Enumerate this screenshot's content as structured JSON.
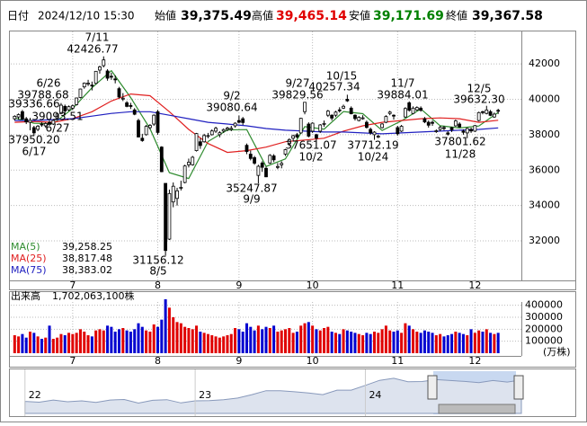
{
  "header": {
    "date_label": "日付",
    "date": "2024/12/10 15:30",
    "open_label": "始値",
    "open": "39,375.49",
    "high_label": "高値",
    "high": "39,465.14",
    "low_label": "安値",
    "low": "39,171.69",
    "close_label": "終値",
    "close": "39,367.58"
  },
  "chart_data": [
    {
      "type": "candlestick",
      "up_color": "#ffffff",
      "down_color": "#000000",
      "grid": true,
      "xlim": [
        -1,
        131
      ],
      "xticks": [
        {
          "value": 15,
          "label": "7"
        },
        {
          "value": 37,
          "label": "8"
        },
        {
          "value": 58,
          "label": "9"
        },
        {
          "value": 77,
          "label": "10"
        },
        {
          "value": 99,
          "label": "11"
        },
        {
          "value": 119,
          "label": "12"
        }
      ],
      "ylim": [
        29870,
        43730
      ],
      "yticks": [
        32000,
        34000,
        36000,
        38000,
        40000,
        42000
      ],
      "ohlc": [
        [
          38900,
          39100,
          38800,
          39038
        ],
        [
          39000,
          39200,
          38850,
          39134
        ],
        [
          39300,
          39400,
          38850,
          38876
        ],
        [
          38900,
          39000,
          38600,
          38720
        ],
        [
          38700,
          38950,
          38250,
          38814
        ],
        [
          38400,
          38500,
          37950.2,
          38102
        ],
        [
          38300,
          38550,
          38200,
          38482
        ],
        [
          38600,
          38700,
          38450,
          38570
        ],
        [
          38500,
          38700,
          38400,
          38633
        ],
        [
          38700,
          38800,
          38500,
          38596
        ],
        [
          38600,
          38850,
          38550,
          38804
        ],
        [
          38900,
          39200,
          38850,
          39173
        ],
        [
          39200,
          39788.68,
          39150,
          39667
        ],
        [
          39600,
          39700,
          39093.51,
          39341
        ],
        [
          39400,
          39650,
          39336.66,
          39583
        ],
        [
          39500,
          39700,
          39400,
          39631
        ],
        [
          39700,
          40100,
          39650,
          40074
        ],
        [
          40100,
          40600,
          40050,
          40580
        ],
        [
          40700,
          40950,
          40600,
          40913
        ],
        [
          40900,
          41100,
          40750,
          40912
        ],
        [
          40800,
          41000,
          40500,
          40780
        ],
        [
          40900,
          41600,
          40850,
          41580
        ],
        [
          41650,
          41900,
          41450,
          41831
        ],
        [
          41900,
          42426.77,
          41800,
          42224
        ],
        [
          41600,
          41700,
          41050,
          41190
        ],
        [
          41300,
          41500,
          41100,
          41275
        ],
        [
          41150,
          41350,
          40900,
          41097
        ],
        [
          40600,
          40700,
          40050,
          40126
        ],
        [
          40050,
          40350,
          39900,
          40063
        ],
        [
          39800,
          39900,
          39550,
          39599
        ],
        [
          39650,
          39800,
          39450,
          39594
        ],
        [
          39400,
          39500,
          39100,
          39154
        ],
        [
          38800,
          38900,
          37850,
          37869
        ],
        [
          37800,
          38050,
          37600,
          37667
        ],
        [
          38000,
          38550,
          37950,
          38468
        ],
        [
          38400,
          38600,
          38300,
          38525
        ],
        [
          38600,
          39150,
          38500,
          39101
        ],
        [
          39300,
          39400,
          38000,
          38126
        ],
        [
          37300,
          37350,
          35880,
          35909
        ],
        [
          35250,
          35250,
          31156.12,
          31458
        ],
        [
          32100,
          34900,
          32050,
          34675
        ],
        [
          34200,
          35300,
          33900,
          35089
        ],
        [
          34400,
          35000,
          34000,
          34831
        ],
        [
          35000,
          35400,
          34850,
          35025
        ],
        [
          35300,
          36300,
          35250,
          36232
        ],
        [
          36300,
          36650,
          36150,
          36442
        ],
        [
          36300,
          36800,
          36250,
          36726
        ],
        [
          37100,
          38100,
          37050,
          38062
        ],
        [
          37600,
          37800,
          37200,
          37388
        ],
        [
          37600,
          38050,
          37550,
          37951
        ],
        [
          37900,
          38100,
          37800,
          37951
        ],
        [
          38000,
          38300,
          37950,
          38211
        ],
        [
          38200,
          38450,
          38100,
          38364
        ],
        [
          38000,
          38200,
          37850,
          38110
        ],
        [
          38200,
          38350,
          38100,
          38288
        ],
        [
          38300,
          38450,
          38200,
          38371
        ],
        [
          38300,
          38500,
          38200,
          38362
        ],
        [
          38500,
          38700,
          38400,
          38647
        ],
        [
          38800,
          39080.64,
          38650,
          38700
        ],
        [
          38900,
          39000,
          38550,
          38686
        ],
        [
          37400,
          37500,
          36900,
          37047
        ],
        [
          36900,
          37100,
          36550,
          36657
        ],
        [
          36700,
          36800,
          36300,
          36391
        ],
        [
          35700,
          36300,
          35247.87,
          36215
        ],
        [
          36400,
          36500,
          35900,
          36159
        ],
        [
          36100,
          36200,
          35600,
          35619
        ],
        [
          36400,
          36900,
          36350,
          36833
        ],
        [
          36800,
          36900,
          36450,
          36581
        ],
        [
          36200,
          36400,
          36050,
          36203
        ],
        [
          36300,
          36500,
          36100,
          36380
        ],
        [
          36900,
          37200,
          36800,
          37155
        ],
        [
          37500,
          37800,
          37350,
          37723
        ],
        [
          37800,
          38000,
          37650,
          37940
        ],
        [
          38000,
          38100,
          37800,
          37870
        ],
        [
          38100,
          38950,
          38050,
          38925
        ],
        [
          39300,
          39829.56,
          39150,
          39829
        ],
        [
          38600,
          38700,
          37850,
          37919
        ],
        [
          38200,
          38700,
          38100,
          38651
        ],
        [
          38000,
          38050,
          37651.07,
          37808
        ],
        [
          38200,
          38600,
          38100,
          38552
        ],
        [
          38600,
          38800,
          38450,
          38635
        ],
        [
          39100,
          39400,
          39000,
          39332
        ],
        [
          39100,
          39150,
          38800,
          38937
        ],
        [
          39100,
          39350,
          39000,
          39277
        ],
        [
          39400,
          39550,
          39250,
          39380
        ],
        [
          39500,
          39700,
          39450,
          39605
        ],
        [
          40000,
          40257.34,
          39850,
          39910
        ],
        [
          39500,
          39600,
          39150,
          39180
        ],
        [
          39100,
          39150,
          38800,
          38911
        ],
        [
          38800,
          39050,
          38750,
          38981
        ],
        [
          38900,
          39100,
          38850,
          38954
        ],
        [
          38700,
          38800,
          38350,
          38411
        ],
        [
          38300,
          38400,
          38000,
          38104
        ],
        [
          38000,
          38200,
          37712.19,
          38143
        ],
        [
          37900,
          38000,
          37800,
          37913
        ],
        [
          38400,
          38650,
          38350,
          38605
        ],
        [
          38700,
          39100,
          38650,
          39027
        ],
        [
          39200,
          39350,
          39100,
          39277
        ],
        [
          39100,
          39150,
          38850,
          39081
        ],
        [
          38400,
          38500,
          37950,
          38053
        ],
        [
          38200,
          38550,
          38150,
          38474
        ],
        [
          39000,
          39550,
          38950,
          39480
        ],
        [
          39800,
          39884.01,
          39300,
          39381
        ],
        [
          39200,
          39600,
          39150,
          39500
        ],
        [
          39400,
          39600,
          39350,
          39533
        ],
        [
          39500,
          39600,
          39300,
          39376
        ],
        [
          38900,
          39000,
          38650,
          38721
        ],
        [
          38700,
          38800,
          38400,
          38535
        ],
        [
          38700,
          38800,
          38500,
          38642
        ],
        [
          38200,
          38300,
          38100,
          38220
        ],
        [
          38300,
          38500,
          38200,
          38414
        ],
        [
          38400,
          38500,
          38250,
          38352
        ],
        [
          38100,
          38200,
          37950,
          38026
        ],
        [
          38400,
          38450,
          38150,
          38283
        ],
        [
          38500,
          38850,
          38450,
          38780
        ],
        [
          38600,
          38700,
          38400,
          38442
        ],
        [
          38200,
          38300,
          38000,
          38134
        ],
        [
          38100,
          38400,
          37801.62,
          38349
        ],
        [
          38300,
          38400,
          38100,
          38208
        ],
        [
          38200,
          38550,
          38150,
          38513
        ],
        [
          38800,
          39300,
          38750,
          39248
        ],
        [
          39300,
          39350,
          39150,
          39276
        ],
        [
          39200,
          39632.3,
          39150,
          39395
        ],
        [
          39300,
          39400,
          39050,
          39091
        ],
        [
          39000,
          39250,
          38950,
          39160
        ],
        [
          39375.49,
          39465.14,
          39171.69,
          39367.58
        ]
      ],
      "series": [
        {
          "name": "MA(5)",
          "color": "#2e8b2e",
          "value_label": "39,258.25",
          "x": [
            0,
            5,
            10,
            15,
            20,
            25,
            30,
            35,
            40,
            45,
            50,
            55,
            60,
            65,
            70,
            75,
            80,
            85,
            90,
            95,
            100,
            105,
            110,
            115,
            120,
            125
          ],
          "values": [
            38950,
            38650,
            38617,
            39479,
            40652,
            41620,
            40096,
            38337,
            35854,
            35524,
            37616,
            38269,
            38288,
            36208,
            36630,
            38457,
            38313,
            39306,
            39187,
            38235,
            38782,
            39454,
            38506,
            38377,
            38490,
            39258.25
          ]
        },
        {
          "name": "MA(25)",
          "color": "#e02020",
          "value_label": "38,817.48",
          "x": [
            0,
            5,
            10,
            15,
            20,
            25,
            30,
            35,
            40,
            45,
            50,
            55,
            60,
            65,
            70,
            75,
            80,
            85,
            90,
            95,
            100,
            105,
            110,
            115,
            120,
            125
          ],
          "values": [
            38700,
            38750,
            38700,
            38900,
            39300,
            39900,
            40300,
            40200,
            39300,
            38300,
            37500,
            37000,
            37100,
            37300,
            37600,
            37700,
            37800,
            38200,
            38500,
            38700,
            38800,
            38900,
            38950,
            38900,
            38700,
            38817.48
          ]
        },
        {
          "name": "MA(75)",
          "color": "#2020c0",
          "value_label": "38,383.02",
          "x": [
            0,
            5,
            10,
            15,
            20,
            25,
            30,
            35,
            40,
            45,
            50,
            55,
            60,
            65,
            70,
            75,
            80,
            85,
            90,
            95,
            100,
            105,
            110,
            115,
            120,
            125
          ],
          "values": [
            38800,
            38800,
            38850,
            38900,
            39050,
            39200,
            39300,
            39300,
            39100,
            38900,
            38700,
            38600,
            38500,
            38350,
            38250,
            38200,
            38150,
            38150,
            38100,
            38050,
            38100,
            38150,
            38200,
            38250,
            38300,
            38383.02
          ]
        }
      ],
      "annotations": [
        "7/11",
        "42426.77",
        "6/26",
        "39788.68",
        "39336.66",
        "39093.51",
        "6/27",
        "37950.20",
        "6/17",
        "9/2",
        "39080.64",
        "35247.87",
        "9/9",
        "9/27",
        "39829.56",
        "10/15",
        "40257.34",
        "37651.07",
        "10/2",
        "11/7",
        "39884.01",
        "37712.19",
        "10/24",
        "12/5",
        "39632.30",
        "37801.62",
        "11/28",
        "31156.12",
        "8/5"
      ]
    },
    {
      "type": "bar",
      "title": "出来高",
      "latest_label": "1,702,063,100株",
      "unit": "(万株)",
      "up_color": "#e00000",
      "down_color": "#0000d0",
      "ylim": [
        0,
        450000
      ],
      "yticks": [
        100000,
        200000,
        300000,
        400000
      ],
      "values": [
        150000,
        140000,
        160000,
        130000,
        180000,
        170000,
        140000,
        120000,
        130000,
        230000,
        120000,
        130000,
        160000,
        150000,
        170000,
        160000,
        170000,
        200000,
        180000,
        150000,
        140000,
        190000,
        200000,
        190000,
        230000,
        220000,
        180000,
        200000,
        210000,
        190000,
        180000,
        200000,
        250000,
        220000,
        190000,
        180000,
        240000,
        220000,
        280000,
        450000,
        380000,
        300000,
        260000,
        250000,
        220000,
        210000,
        200000,
        230000,
        180000,
        170000,
        160000,
        150000,
        140000,
        130000,
        140000,
        150000,
        160000,
        210000,
        200000,
        180000,
        250000,
        220000,
        190000,
        230000,
        200000,
        220000,
        210000,
        230000,
        180000,
        190000,
        200000,
        210000,
        170000,
        180000,
        230000,
        250000,
        260000,
        230000,
        200000,
        190000,
        210000,
        220000,
        180000,
        170000,
        160000,
        200000,
        190000,
        180000,
        170000,
        160000,
        150000,
        170000,
        160000,
        180000,
        170000,
        200000,
        230000,
        190000,
        180000,
        190000,
        170000,
        250000,
        230000,
        200000,
        180000,
        170000,
        190000,
        180000,
        170000,
        150000,
        160000,
        140000,
        150000,
        160000,
        180000,
        170000,
        160000,
        150000,
        200000,
        170000,
        190000,
        180000,
        200000,
        170000,
        160000,
        170000
      ]
    },
    {
      "type": "area",
      "color": "#8899bb",
      "xlim": [
        -1,
        35
      ],
      "xticks": [
        {
          "value": 0,
          "label": "22"
        },
        {
          "value": 12,
          "label": "23"
        },
        {
          "value": 24,
          "label": "24"
        }
      ],
      "ylim": [
        20000,
        44000
      ],
      "values": [
        27000,
        26500,
        27800,
        26800,
        27300,
        26400,
        27800,
        28100,
        26000,
        27600,
        28000,
        26100,
        27300,
        27400,
        28000,
        28900,
        30900,
        33200,
        33200,
        32600,
        31900,
        30900,
        33500,
        33500,
        36300,
        39200,
        40400,
        38400,
        38500,
        39600,
        39100,
        38600,
        37900,
        39100,
        38200,
        39400
      ]
    }
  ]
}
